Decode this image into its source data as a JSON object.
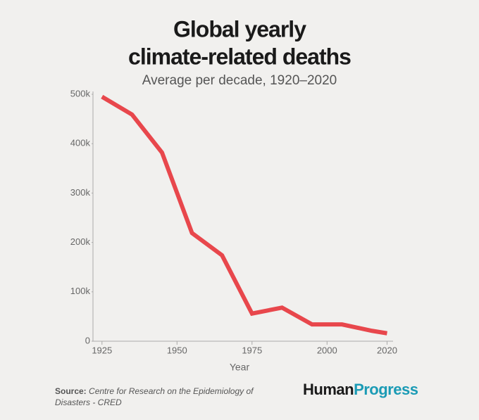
{
  "chart_data": {
    "type": "line",
    "title": [
      "Global yearly",
      "climate-related deaths"
    ],
    "subtitle": "Average per decade, 1920–2020",
    "x_label": "Year",
    "x": [
      1925,
      1935,
      1945,
      1955,
      1965,
      1975,
      1985,
      1995,
      2005,
      2015,
      2020
    ],
    "series": [
      {
        "name": "Climate-related deaths",
        "color": "#e8474c",
        "values": [
          495000,
          459000,
          382000,
          219000,
          174000,
          56000,
          68000,
          34000,
          34000,
          21000,
          16000
        ]
      }
    ],
    "xlim": [
      1922,
      2022
    ],
    "xticks": [
      1925,
      1950,
      1975,
      2000,
      2020
    ],
    "ylim": [
      0,
      500000
    ],
    "yticks": [
      0,
      {
        "value": 100000,
        "label": "100k"
      },
      {
        "value": 200000,
        "label": "200k"
      },
      {
        "value": 300000,
        "label": "300k"
      },
      {
        "value": 400000,
        "label": "400k"
      },
      {
        "value": 500000,
        "label": "500k"
      }
    ],
    "grid": false,
    "legend": false
  },
  "footer": {
    "source_label": "Source:",
    "source": "Centre for Research on the Epidemiology of Disasters - CRED",
    "logo": [
      "Human",
      "Progress"
    ]
  }
}
